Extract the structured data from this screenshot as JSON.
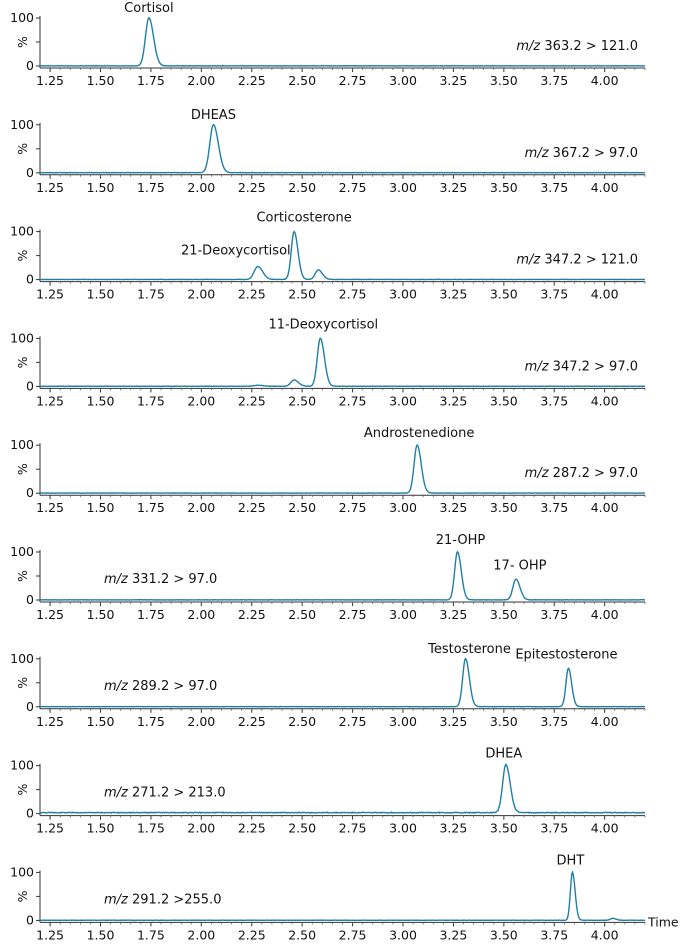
{
  "chart_data": {
    "type": "line",
    "title": "",
    "xlabel": "Time",
    "ylabel": "%",
    "xlim": [
      1.2,
      4.2
    ],
    "ylim": [
      0,
      100
    ],
    "x_ticks": [
      "1.25",
      "1.50",
      "1.75",
      "2.00",
      "2.25",
      "2.50",
      "2.75",
      "3.00",
      "3.25",
      "3.50",
      "3.75",
      "4.00"
    ],
    "y_ticks": [
      "0",
      "50",
      "100"
    ],
    "y_tick_labels_shown": [
      "0",
      "100"
    ],
    "line_color": "#1f7fa6",
    "panels": [
      {
        "transition_italic": "m/z",
        "transition_rest": " 363.2 > 121.0",
        "transition_side": "right",
        "peaks": [
          {
            "label": "Cortisol",
            "rt": 1.74,
            "height": 100,
            "width": 0.017
          }
        ],
        "minor_peaks": [
          {
            "rt": 1.0,
            "height": 0,
            "width": 0.02
          }
        ]
      },
      {
        "transition_italic": "m/z",
        "transition_rest": " 367.2 > 97.0",
        "transition_side": "right",
        "peaks": [
          {
            "label": "DHEAS",
            "rt": 2.06,
            "height": 100,
            "width": 0.018
          }
        ],
        "minor_peaks": []
      },
      {
        "transition_italic": "m/z",
        "transition_rest": " 347.2 > 121.0",
        "transition_side": "right",
        "peaks": [
          {
            "label": "21-Deoxycortisol",
            "rt": 2.28,
            "height": 27,
            "width": 0.018
          },
          {
            "label": "Corticosterone",
            "rt": 2.46,
            "height": 100,
            "width": 0.014
          },
          {
            "label": "",
            "rt": 2.58,
            "height": 20,
            "width": 0.015
          }
        ],
        "minor_peaks": []
      },
      {
        "transition_italic": "m/z",
        "transition_rest": " 347.2 > 97.0",
        "transition_side": "right",
        "peaks": [
          {
            "label": "11-Deoxycortisol",
            "rt": 2.59,
            "height": 100,
            "width": 0.015
          },
          {
            "label": "",
            "rt": 2.46,
            "height": 13,
            "width": 0.016
          },
          {
            "label": "",
            "rt": 2.28,
            "height": 2,
            "width": 0.02
          }
        ],
        "minor_peaks": []
      },
      {
        "transition_italic": "m/z",
        "transition_rest": " 287.2 > 97.0",
        "transition_side": "right",
        "peaks": [
          {
            "label": "Androstenedione",
            "rt": 3.07,
            "height": 100,
            "width": 0.015
          }
        ],
        "minor_peaks": []
      },
      {
        "transition_italic": "m/z",
        "transition_rest": " 331.2 > 97.0",
        "transition_side": "left",
        "peaks": [
          {
            "label": "21-OHP",
            "rt": 3.27,
            "height": 100,
            "width": 0.014
          },
          {
            "label": "17- OHP",
            "rt": 3.56,
            "height": 43,
            "width": 0.015
          }
        ],
        "minor_peaks": []
      },
      {
        "transition_italic": "m/z",
        "transition_rest": " 289.2 > 97.0",
        "transition_side": "left",
        "peaks": [
          {
            "label": "Testosterone",
            "rt": 3.31,
            "height": 100,
            "width": 0.014
          },
          {
            "label": "Epitestosterone",
            "rt": 3.82,
            "height": 80,
            "width": 0.012
          }
        ],
        "minor_peaks": []
      },
      {
        "transition_italic": "m/z",
        "transition_rest": " 271.2 > 213.0",
        "transition_side": "left",
        "peaks": [
          {
            "label": "DHEA",
            "rt": 3.51,
            "height": 100,
            "width": 0.016
          }
        ],
        "minor_peaks": [],
        "noisy_baseline": true
      },
      {
        "transition_italic": "m/z",
        "transition_rest": " 291.2 >255.0",
        "transition_side": "left",
        "peaks": [
          {
            "label": "DHT",
            "rt": 3.84,
            "height": 100,
            "width": 0.01
          },
          {
            "label": "",
            "rt": 4.04,
            "height": 4,
            "width": 0.012
          }
        ],
        "minor_peaks": []
      }
    ]
  }
}
